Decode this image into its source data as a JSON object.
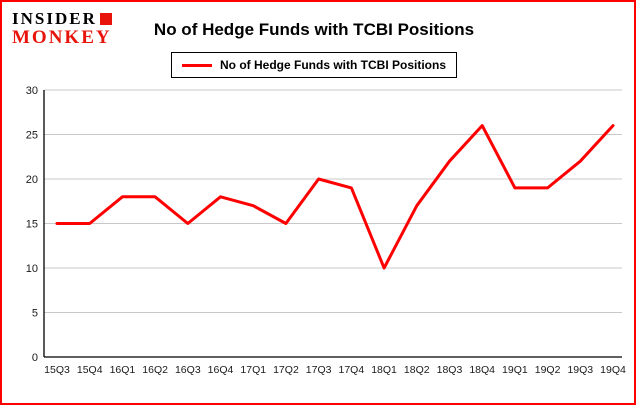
{
  "header": {
    "logo_line1": "INSIDER",
    "logo_line2": "MONKEY",
    "title": "No of Hedge Funds with TCBI Positions"
  },
  "legend": {
    "label": "No of Hedge Funds with TCBI Positions"
  },
  "colors": {
    "line": "#ff0000",
    "page_border": "#ff0000",
    "grid": "#c8c8c8",
    "axis": "#000000",
    "logo_accent": "#e8140c"
  },
  "chart_data": {
    "type": "line",
    "title": "No of Hedge Funds with TCBI Positions",
    "xlabel": "",
    "ylabel": "",
    "categories": [
      "15Q3",
      "15Q4",
      "16Q1",
      "16Q2",
      "16Q3",
      "16Q4",
      "17Q1",
      "17Q2",
      "17Q3",
      "17Q4",
      "18Q1",
      "18Q2",
      "18Q3",
      "18Q4",
      "19Q1",
      "19Q2",
      "19Q3",
      "19Q4"
    ],
    "series": [
      {
        "name": "No of Hedge Funds with TCBI Positions",
        "values": [
          15,
          15,
          18,
          18,
          15,
          18,
          17,
          15,
          20,
          19,
          10,
          17,
          22,
          26,
          19,
          19,
          22,
          26
        ]
      }
    ],
    "ylim": [
      0,
      30
    ],
    "yticks": [
      0,
      5,
      10,
      15,
      20,
      25,
      30
    ],
    "grid": true,
    "legend_position": "top"
  }
}
